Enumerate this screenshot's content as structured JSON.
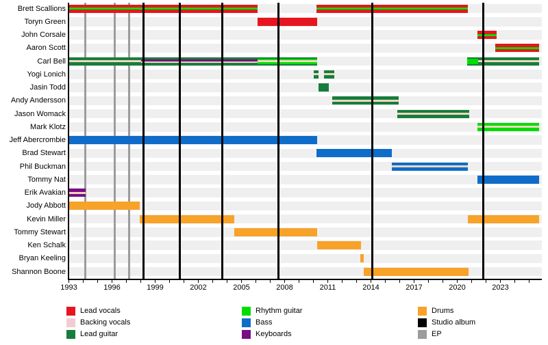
{
  "colors": {
    "lead_vocals": "#e5161f",
    "backing_vocals": "#f2ccd2",
    "backing_vocals_stripe": "#eed6bf",
    "lead_guitar": "#177d3d",
    "rhythm_guitar": "#00dd00",
    "bass": "#0f6cc9",
    "keyboards": "#7a0c86",
    "drums": "#f7a229",
    "studio_album": "#000000",
    "ep": "#9c9c9c",
    "row_band": "#efefef",
    "background": "#ffffff"
  },
  "chart_data": {
    "type": "bar",
    "subtype": "gantt-timeline-band-members",
    "x_axis": {
      "unit": "year",
      "range_start": 1993,
      "range_end": 2025.9,
      "tick_step_years": 1,
      "minor_tick_first": 1993,
      "minor_tick_last": 2025,
      "labels": [
        "1993",
        "1996",
        "1999",
        "2002",
        "2005",
        "2008",
        "2011",
        "2014",
        "2017",
        "2020",
        "2023"
      ],
      "label_years": [
        1993,
        1996,
        1999,
        2002,
        2005,
        2008,
        2011,
        2014,
        2017,
        2020,
        2023
      ]
    },
    "members": [
      {
        "name": "Brett Scallions",
        "roles": [
          "lead vocals",
          "rhythm guitar"
        ],
        "segments": [
          {
            "start": 1993.0,
            "end": 2006.1,
            "base": "lead_vocals",
            "center": [
              "rhythm_guitar"
            ]
          },
          {
            "start": 2010.2,
            "end": 2020.75,
            "base": "lead_vocals",
            "center": [
              "rhythm_guitar"
            ]
          }
        ]
      },
      {
        "name": "Toryn Green",
        "roles": [
          "lead vocals"
        ],
        "segments": [
          {
            "start": 2006.1,
            "end": 2010.25,
            "base": "lead_vocals",
            "center": []
          }
        ]
      },
      {
        "name": "John Corsale",
        "roles": [
          "lead vocals",
          "rhythm guitar"
        ],
        "segments": [
          {
            "start": 2021.4,
            "end": 2022.75,
            "base": "lead_vocals",
            "center": [
              "rhythm_guitar"
            ]
          }
        ]
      },
      {
        "name": "Aaron Scott",
        "roles": [
          "lead vocals",
          "rhythm guitar"
        ],
        "segments": [
          {
            "start": 2022.65,
            "end": 2025.7,
            "base": "lead_vocals",
            "center": [
              "rhythm_guitar"
            ]
          }
        ]
      },
      {
        "name": "Carl Bell",
        "roles": [
          "lead guitar",
          "backing vocals",
          "keyboards",
          "rhythm guitar"
        ],
        "segments": [
          {
            "start": 1993.0,
            "end": 1998.0,
            "base": "lead_guitar",
            "center": [
              "backing_vocals_stripe"
            ]
          },
          {
            "start": 1998.0,
            "end": 2006.1,
            "base": "lead_guitar",
            "center": [
              "keyboards",
              "backing_vocals_stripe"
            ]
          },
          {
            "start": 2006.1,
            "end": 2010.25,
            "base": "lead_guitar",
            "inner": "rhythm_guitar",
            "center": [
              "backing_vocals_stripe"
            ]
          },
          {
            "start": 2020.7,
            "end": 2021.45,
            "base": "lead_guitar",
            "inner": "rhythm_guitar",
            "center": []
          },
          {
            "start": 2021.45,
            "end": 2025.7,
            "base": "lead_guitar",
            "center": [
              "backing_vocals_stripe"
            ]
          }
        ]
      },
      {
        "name": "Yogi Lonich",
        "roles": [
          "lead guitar",
          "backing vocals",
          "touring member"
        ],
        "segments": [
          {
            "start": 2010.0,
            "end": 2010.35,
            "base": "lead_guitar",
            "center": [
              "backing_vocals_stripe"
            ],
            "dashed": true
          },
          {
            "start": 2010.75,
            "end": 2011.45,
            "base": "lead_guitar",
            "center": [
              "backing_vocals_stripe"
            ],
            "dashed": true
          }
        ]
      },
      {
        "name": "Jasin Todd",
        "roles": [
          "lead guitar"
        ],
        "segments": [
          {
            "start": 2010.35,
            "end": 2011.05,
            "base": "lead_guitar",
            "center": []
          }
        ]
      },
      {
        "name": "Andy Andersson",
        "roles": [
          "lead guitar",
          "backing vocals"
        ],
        "segments": [
          {
            "start": 2011.3,
            "end": 2015.95,
            "base": "lead_guitar",
            "center": [
              "backing_vocals_stripe"
            ]
          }
        ]
      },
      {
        "name": "Jason Womack",
        "roles": [
          "lead guitar",
          "backing vocals"
        ],
        "segments": [
          {
            "start": 2015.85,
            "end": 2020.85,
            "base": "lead_guitar",
            "center": [
              "backing_vocals_stripe"
            ]
          }
        ]
      },
      {
        "name": "Mark Klotz",
        "roles": [
          "rhythm guitar",
          "backing vocals"
        ],
        "segments": [
          {
            "start": 2021.4,
            "end": 2025.7,
            "base": "rhythm_guitar",
            "center": [
              "backing_vocals_stripe"
            ]
          }
        ]
      },
      {
        "name": "Jeff Abercrombie",
        "roles": [
          "bass"
        ],
        "segments": [
          {
            "start": 1993.0,
            "end": 2010.25,
            "base": "bass",
            "center": []
          }
        ]
      },
      {
        "name": "Brad Stewart",
        "roles": [
          "bass"
        ],
        "segments": [
          {
            "start": 2010.2,
            "end": 2015.45,
            "base": "bass",
            "center": []
          }
        ]
      },
      {
        "name": "Phil Buckman",
        "roles": [
          "bass",
          "backing vocals"
        ],
        "segments": [
          {
            "start": 2015.45,
            "end": 2020.75,
            "base": "bass",
            "center": [
              "backing_vocals_stripe"
            ]
          }
        ]
      },
      {
        "name": "Tommy Nat",
        "roles": [
          "bass"
        ],
        "segments": [
          {
            "start": 2021.4,
            "end": 2025.7,
            "base": "bass",
            "center": []
          }
        ]
      },
      {
        "name": "Erik Avakian",
        "roles": [
          "keyboards",
          "backing vocals"
        ],
        "segments": [
          {
            "start": 1993.0,
            "end": 1994.15,
            "base": "keyboards",
            "center": [
              "backing_vocals_stripe"
            ]
          }
        ]
      },
      {
        "name": "Jody Abbott",
        "roles": [
          "drums"
        ],
        "segments": [
          {
            "start": 1993.0,
            "end": 1997.95,
            "base": "drums",
            "center": []
          }
        ]
      },
      {
        "name": "Kevin Miller",
        "roles": [
          "drums"
        ],
        "segments": [
          {
            "start": 1997.95,
            "end": 2004.5,
            "base": "drums",
            "center": []
          },
          {
            "start": 2020.75,
            "end": 2025.7,
            "base": "drums",
            "center": []
          }
        ]
      },
      {
        "name": "Tommy Stewart",
        "roles": [
          "drums"
        ],
        "segments": [
          {
            "start": 2004.5,
            "end": 2010.25,
            "base": "drums",
            "center": []
          }
        ]
      },
      {
        "name": "Ken Schalk",
        "roles": [
          "drums"
        ],
        "segments": [
          {
            "start": 2010.25,
            "end": 2013.3,
            "base": "drums",
            "center": []
          }
        ]
      },
      {
        "name": "Bryan Keeling",
        "roles": [
          "drums"
        ],
        "segments": [
          {
            "start": 2013.25,
            "end": 2013.5,
            "base": "drums",
            "center": []
          }
        ]
      },
      {
        "name": "Shannon Boone",
        "roles": [
          "drums"
        ],
        "segments": [
          {
            "start": 2013.5,
            "end": 2020.8,
            "base": "drums",
            "center": []
          }
        ]
      }
    ],
    "events": {
      "studio_albums_years": [
        1998.2,
        2000.7,
        2003.65,
        2007.55,
        2014.1,
        2021.8
      ],
      "ep_years": [
        1994.15,
        1996.2,
        1997.2
      ]
    },
    "legend_position": "bottom",
    "grid": "off"
  },
  "legend": {
    "items": [
      {
        "label": "Lead vocals",
        "role": "lead_vocals"
      },
      {
        "label": "Backing vocals",
        "role": "backing_vocals"
      },
      {
        "label": "Lead guitar",
        "role": "lead_guitar"
      },
      {
        "label": "Rhythm guitar",
        "role": "rhythm_guitar"
      },
      {
        "label": "Bass",
        "role": "bass"
      },
      {
        "label": "Keyboards",
        "role": "keyboards"
      },
      {
        "label": "Drums",
        "role": "drums"
      },
      {
        "label": "Studio album",
        "role": "studio_album"
      },
      {
        "label": "EP",
        "role": "ep"
      }
    ]
  }
}
